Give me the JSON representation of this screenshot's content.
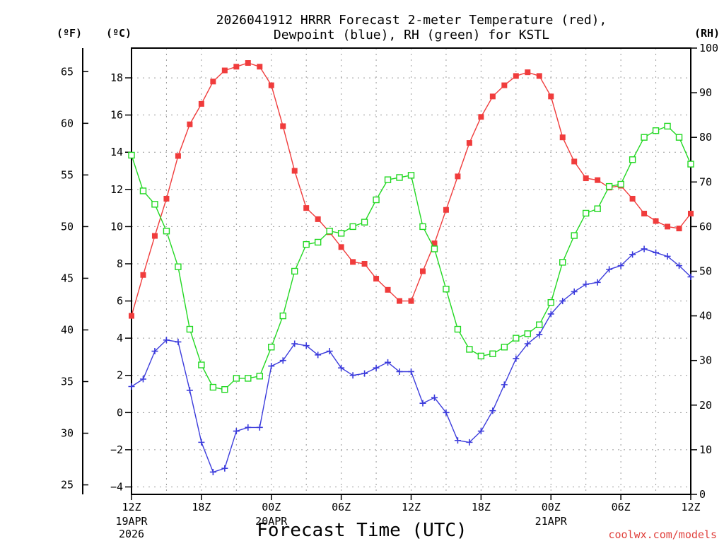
{
  "chart_data": {
    "type": "line",
    "title": [
      "2026041912 HRRR Forecast 2-meter Temperature (red),",
      "Dewpoint (blue), RH (green) for KSTL"
    ],
    "xlabel": "Forecast Time (UTC)",
    "watermark": "coolwx.com/models",
    "x_ticks": [
      {
        "hour": 0,
        "label": "12Z",
        "sub": [
          "19APR",
          "2026"
        ]
      },
      {
        "hour": 6,
        "label": "18Z",
        "sub": []
      },
      {
        "hour": 12,
        "label": "00Z",
        "sub": [
          "20APR"
        ]
      },
      {
        "hour": 18,
        "label": "06Z",
        "sub": []
      },
      {
        "hour": 24,
        "label": "12Z",
        "sub": []
      },
      {
        "hour": 30,
        "label": "18Z",
        "sub": []
      },
      {
        "hour": 36,
        "label": "00Z",
        "sub": [
          "21APR"
        ]
      },
      {
        "hour": 42,
        "label": "06Z",
        "sub": []
      },
      {
        "hour": 48,
        "label": "12Z",
        "sub": []
      }
    ],
    "xlim": [
      0,
      48
    ],
    "grid": true,
    "axes": {
      "celsius": {
        "unit": "(ºC)",
        "range": [
          -4.4,
          19.6
        ],
        "ticks": [
          -4,
          -2,
          0,
          2,
          4,
          6,
          8,
          10,
          12,
          14,
          16,
          18
        ],
        "tick_labels": [
          "−4",
          "−2",
          "0",
          "2",
          "4",
          "6",
          "8",
          "10",
          "12",
          "14",
          "16",
          "18"
        ]
      },
      "fahrenheit": {
        "unit": "(ºF)",
        "ticks": [
          25,
          30,
          35,
          40,
          45,
          50,
          55,
          60,
          65
        ]
      },
      "rh": {
        "unit": "(RH)",
        "range": [
          0,
          100
        ],
        "ticks": [
          0,
          10,
          20,
          30,
          40,
          50,
          60,
          70,
          80,
          90,
          100
        ]
      }
    },
    "series": [
      {
        "name": "2-meter Temperature",
        "axis": "celsius",
        "color": "#f03c3c",
        "marker": "filled-square",
        "x": [
          0,
          1,
          2,
          3,
          4,
          5,
          6,
          7,
          8,
          9,
          10,
          11,
          12,
          13,
          14,
          15,
          16,
          17,
          18,
          19,
          20,
          21,
          22,
          23,
          24,
          25,
          26,
          27,
          28,
          29,
          30,
          31,
          32,
          33,
          34,
          35,
          36,
          37,
          38,
          39,
          40,
          41,
          42,
          43,
          44,
          45,
          46,
          47,
          48
        ],
        "values": [
          5.2,
          7.4,
          9.5,
          11.5,
          13.8,
          15.5,
          16.6,
          17.8,
          18.4,
          18.6,
          18.8,
          18.6,
          17.6,
          15.4,
          13.0,
          11.0,
          10.4,
          9.7,
          8.9,
          8.1,
          8.0,
          7.2,
          6.6,
          6.0,
          6.0,
          7.6,
          9.1,
          10.9,
          12.7,
          14.5,
          15.9,
          17.0,
          17.6,
          18.1,
          18.3,
          18.1,
          17.0,
          14.8,
          13.5,
          12.6,
          12.5,
          12.1,
          12.2,
          11.5,
          10.7,
          10.3,
          10.0,
          9.9,
          10.7
        ]
      },
      {
        "name": "Dewpoint",
        "axis": "celsius",
        "color": "#3c3cdc",
        "marker": "plus",
        "x": [
          0,
          1,
          2,
          3,
          4,
          5,
          6,
          7,
          8,
          9,
          10,
          11,
          12,
          13,
          14,
          15,
          16,
          17,
          18,
          19,
          20,
          21,
          22,
          23,
          24,
          25,
          26,
          27,
          28,
          29,
          30,
          31,
          32,
          33,
          34,
          35,
          36,
          37,
          38,
          39,
          40,
          41,
          42,
          43,
          44,
          45,
          46,
          47,
          48
        ],
        "values": [
          1.4,
          1.8,
          3.3,
          3.9,
          3.8,
          1.2,
          -1.6,
          -3.2,
          -3.0,
          -1.0,
          -0.8,
          -0.8,
          2.5,
          2.8,
          3.7,
          3.6,
          3.1,
          3.3,
          2.4,
          2.0,
          2.1,
          2.4,
          2.7,
          2.2,
          2.2,
          0.5,
          0.8,
          0.0,
          -1.5,
          -1.6,
          -1.0,
          0.1,
          1.5,
          2.9,
          3.7,
          4.2,
          5.3,
          6.0,
          6.5,
          6.9,
          7.0,
          7.7,
          7.9,
          8.5,
          8.8,
          8.6,
          8.4,
          7.9,
          7.3
        ]
      },
      {
        "name": "RH",
        "axis": "rh",
        "color": "#22d822",
        "marker": "open-square",
        "x": [
          0,
          1,
          2,
          3,
          4,
          5,
          6,
          7,
          8,
          9,
          10,
          11,
          12,
          13,
          14,
          15,
          16,
          17,
          18,
          19,
          20,
          21,
          22,
          23,
          24,
          25,
          26,
          27,
          28,
          29,
          30,
          31,
          32,
          33,
          34,
          35,
          36,
          37,
          38,
          39,
          40,
          41,
          42,
          43,
          44,
          45,
          46,
          47,
          48
        ],
        "values": [
          76,
          68,
          65,
          59,
          51,
          37,
          29,
          24,
          23.5,
          26,
          26,
          26.5,
          33,
          40,
          50,
          56,
          56.5,
          59,
          58.5,
          60,
          61,
          66,
          70.5,
          71,
          71.5,
          60,
          55,
          46,
          37,
          32.5,
          31,
          31.5,
          33,
          35,
          36,
          38,
          43,
          52,
          58,
          63,
          64,
          69,
          69.5,
          75,
          80,
          81.5,
          82.5,
          80,
          74
        ]
      }
    ]
  }
}
